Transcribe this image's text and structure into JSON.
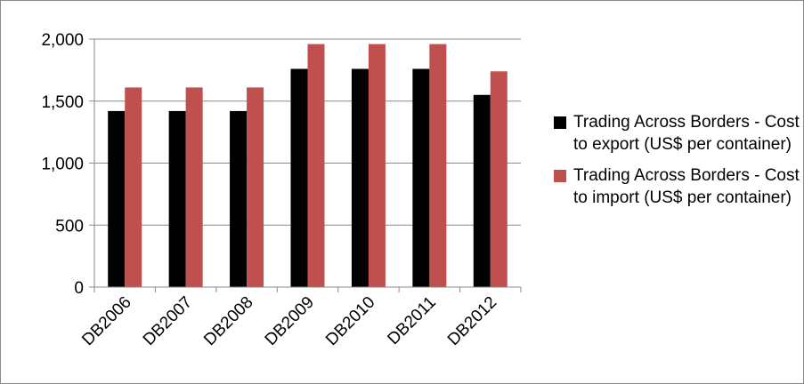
{
  "chart_data": {
    "type": "bar",
    "categories": [
      "DB2006",
      "DB2007",
      "DB2008",
      "DB2009",
      "DB2010",
      "DB2011",
      "DB2012"
    ],
    "series": [
      {
        "name": "Trading Across Borders - Cost to export (US$ per container)",
        "color": "#000000",
        "values": [
          1420,
          1420,
          1420,
          1760,
          1760,
          1760,
          1550
        ]
      },
      {
        "name": "Trading Across Borders - Cost to import (US$ per container)",
        "color": "#c0504d",
        "values": [
          1610,
          1610,
          1610,
          1960,
          1960,
          1960,
          1740
        ]
      }
    ],
    "ylim": [
      0,
      2000
    ],
    "yticks": [
      "0",
      "500",
      "1,000",
      "1,500",
      "2,000"
    ],
    "ytick_values": [
      0,
      500,
      1000,
      1500,
      2000
    ],
    "grid": true,
    "legend_position": "right"
  }
}
